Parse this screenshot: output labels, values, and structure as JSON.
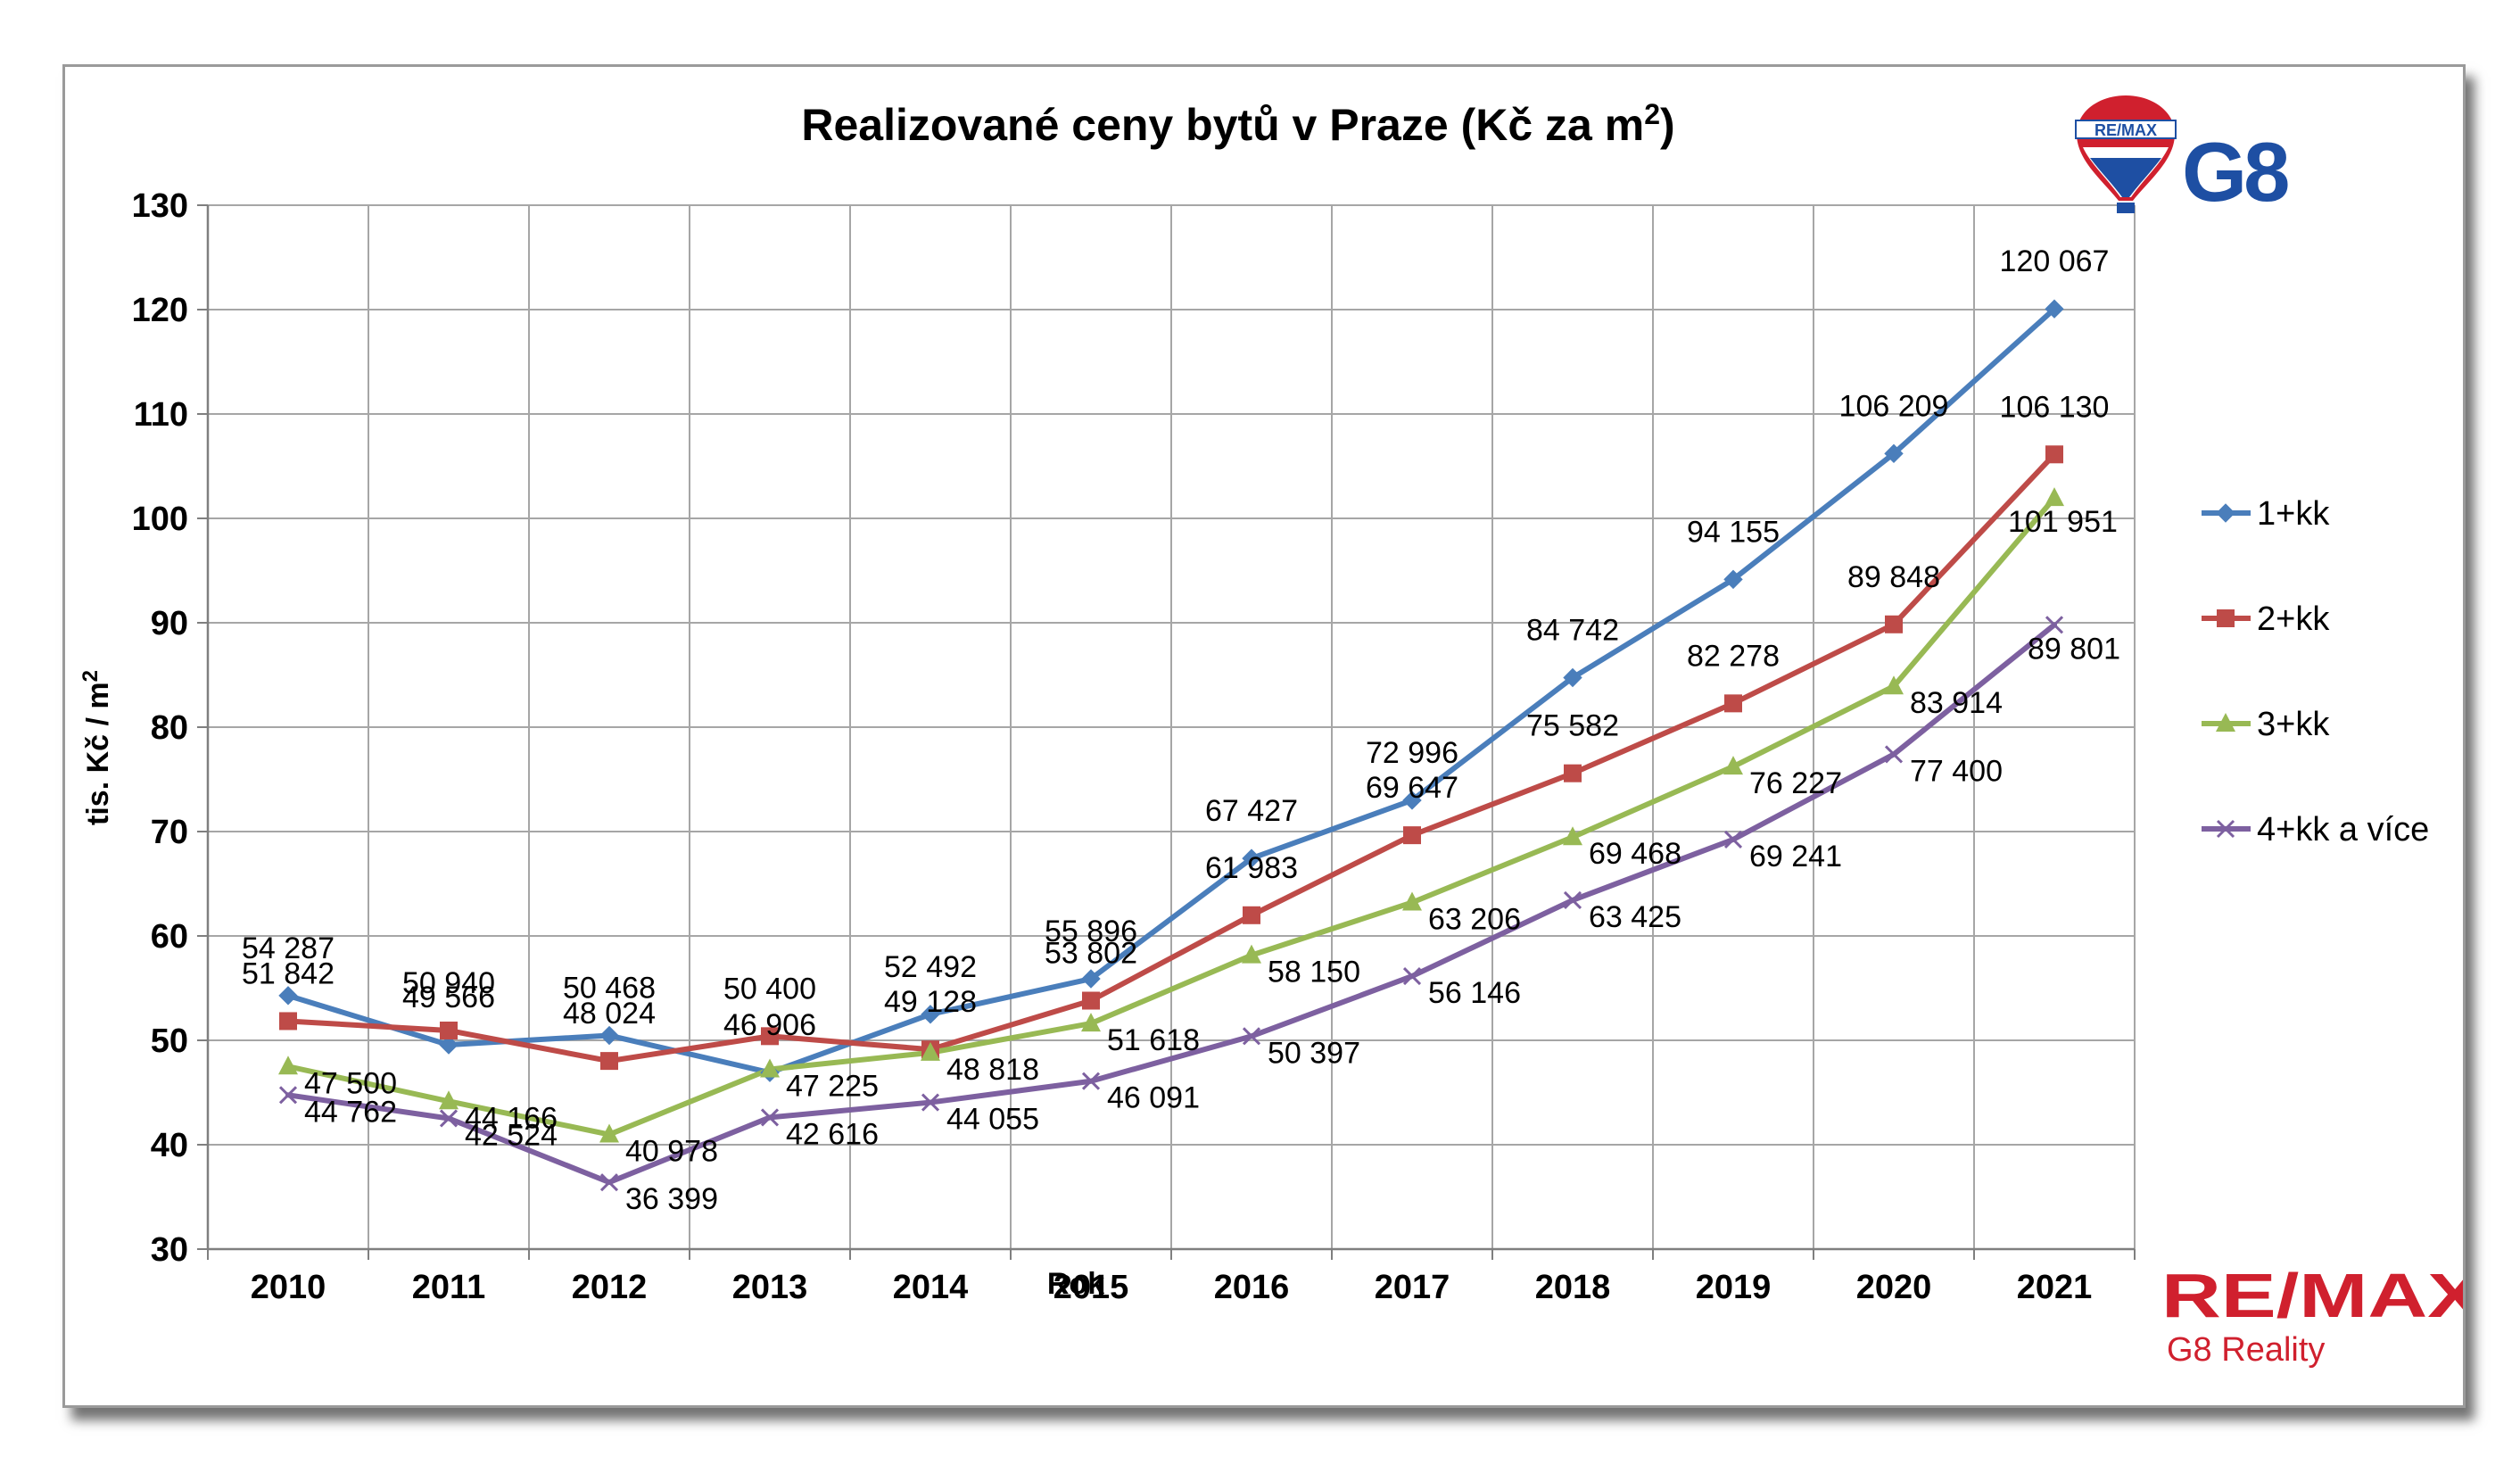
{
  "chart_data": {
    "type": "line",
    "title": "Realizované ceny bytů v Praze (Kč za m",
    "title_sup": "2",
    "title_end": ")",
    "xlabel": "Rok",
    "ylabel": "tis. Kč / m",
    "ylabel_sup": "2",
    "ylim": [
      30,
      130
    ],
    "ytick_step": 10,
    "grid": true,
    "legend_position": "right",
    "categories": [
      "2010",
      "2011",
      "2012",
      "2013",
      "2014",
      "2015",
      "2016",
      "2017",
      "2018",
      "2019",
      "2020",
      "2021"
    ],
    "series": [
      {
        "name": "1+kk",
        "color": "#4a7ebb",
        "marker": "diamond",
        "values": [
          54.287,
          49.566,
          50.468,
          46.906,
          52.492,
          55.896,
          67.427,
          72.996,
          84.742,
          94.155,
          106.209,
          120.067
        ],
        "labels": [
          "54 287",
          "49 566",
          "50 468",
          "46 906",
          "52 492",
          "55 896",
          "67 427",
          "72 996",
          "84 742",
          "94 155",
          "106 209",
          "120 067"
        ]
      },
      {
        "name": "2+kk",
        "color": "#be4b48",
        "marker": "square",
        "values": [
          51.842,
          50.94,
          48.024,
          50.4,
          49.128,
          53.802,
          61.983,
          69.647,
          75.582,
          82.278,
          89.848,
          106.13
        ],
        "labels": [
          "51 842",
          "50 940",
          "48 024",
          "50 400",
          "49 128",
          "53 802",
          "61 983",
          "69 647",
          "75 582",
          "82 278",
          "89 848",
          "106 130"
        ]
      },
      {
        "name": "3+kk",
        "color": "#98b954",
        "marker": "triangle",
        "values": [
          47.5,
          44.166,
          40.978,
          47.225,
          48.818,
          51.618,
          58.15,
          63.206,
          69.468,
          76.227,
          83.914,
          101.951
        ],
        "labels": [
          "47 500",
          "44 166",
          "40 978",
          "47 225",
          "48 818",
          "51 618",
          "58 150",
          "63 206",
          "69 468",
          "76 227",
          "83 914",
          "101 951"
        ]
      },
      {
        "name": "4+kk a více",
        "color": "#7d60a0",
        "marker": "x",
        "values": [
          44.762,
          42.524,
          36.399,
          42.616,
          44.055,
          46.091,
          50.397,
          56.146,
          63.425,
          69.241,
          77.4,
          89.801
        ],
        "labels": [
          "44 762",
          "42 524",
          "36 399",
          "42 616",
          "44 055",
          "46 091",
          "50 397",
          "56 146",
          "63 425",
          "69 241",
          "77 400",
          "89 801"
        ]
      }
    ]
  },
  "branding": {
    "logo_top_text": "G8",
    "balloon_text": "RE/MAX",
    "logo_bottom_main": "RE/MAX",
    "logo_bottom_sub": "G8 Reality",
    "blue": "#1e4fa3",
    "red": "#d0202e"
  }
}
